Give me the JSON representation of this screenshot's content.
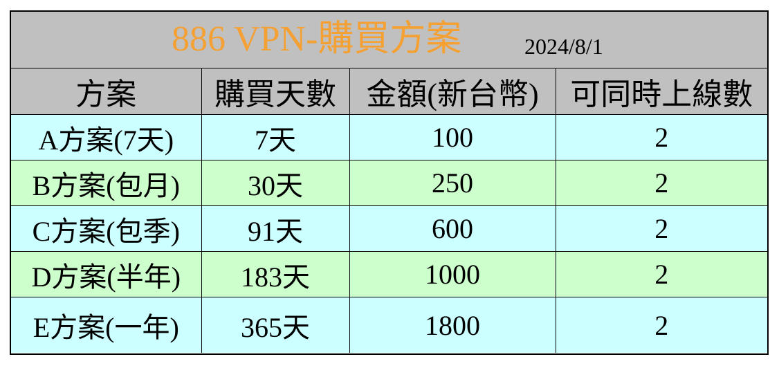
{
  "title": {
    "main": "886 VPN-購買方案",
    "date": "2024/8/1"
  },
  "colors": {
    "title_text": "#f5a032",
    "header_bg": "#c0c0c0",
    "row_cyan": "#ccffff",
    "row_green": "#ccffcc"
  },
  "table": {
    "headers": [
      "方案",
      "購買天數",
      "金額(新台幣)",
      "可同時上線數"
    ],
    "rows": [
      [
        "A方案(7天)",
        "7天",
        "100",
        "2"
      ],
      [
        "B方案(包月)",
        "30天",
        "250",
        "2"
      ],
      [
        "C方案(包季)",
        "91天",
        "600",
        "2"
      ],
      [
        "D方案(半年)",
        "183天",
        "1000",
        "2"
      ],
      [
        "E方案(一年)",
        "365天",
        "1800",
        "2"
      ]
    ]
  }
}
